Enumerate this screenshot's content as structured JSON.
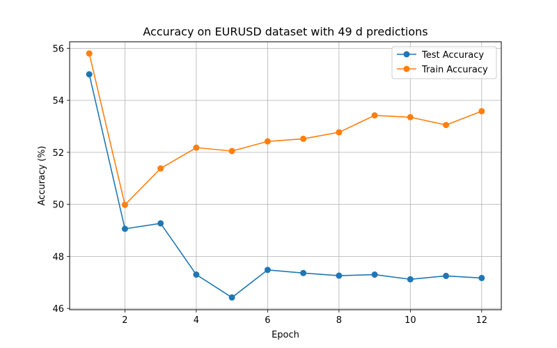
{
  "chart_data": {
    "type": "line",
    "title": "Accuracy on EURUSD dataset with 49 d predictions",
    "xlabel": "Epoch",
    "ylabel": "Accuracy (%)",
    "x": [
      1,
      2,
      3,
      4,
      5,
      6,
      7,
      8,
      9,
      10,
      11,
      12
    ],
    "xlim": [
      0.45,
      12.55
    ],
    "ylim": [
      45.95,
      56.25
    ],
    "xticks": [
      2,
      4,
      6,
      8,
      10,
      12
    ],
    "yticks": [
      46,
      48,
      50,
      52,
      54,
      56
    ],
    "grid": true,
    "legend_position": "top-right",
    "series": [
      {
        "name": "Test Accuracy",
        "color": "#1f77b4",
        "values": [
          55.0,
          49.06,
          49.27,
          47.3,
          46.42,
          47.48,
          47.36,
          47.26,
          47.3,
          47.12,
          47.25,
          47.17
        ]
      },
      {
        "name": "Train Accuracy",
        "color": "#ff7f0e",
        "values": [
          55.8,
          49.98,
          51.38,
          52.18,
          52.05,
          52.42,
          52.52,
          52.77,
          53.42,
          53.35,
          53.05,
          53.58
        ]
      }
    ]
  }
}
